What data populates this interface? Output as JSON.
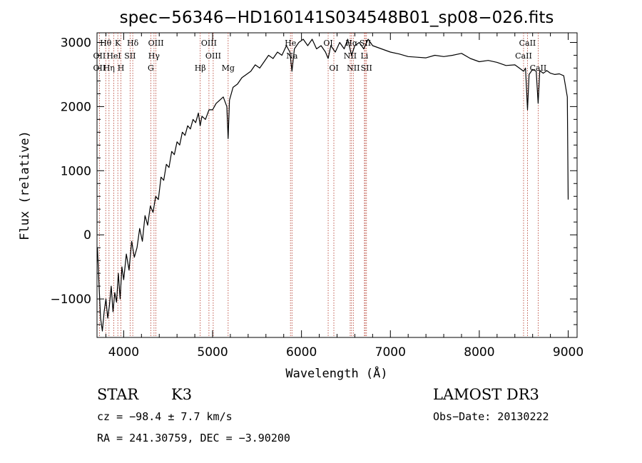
{
  "chart_data": {
    "type": "line",
    "title": "spec−56346−HD160141S034548B01_sp08−026.fits",
    "xlabel": "Wavelength (Å)",
    "ylabel": "Flux (relative)",
    "xlim": [
      3700,
      9100
    ],
    "ylim": [
      -1600,
      3150
    ],
    "x_ticks": [
      4000,
      5000,
      6000,
      7000,
      8000,
      9000
    ],
    "y_ticks": [
      -1000,
      0,
      1000,
      2000,
      3000
    ],
    "grid": false,
    "line_color": "#000000",
    "marker_color": "#b03020",
    "spectral_lines": [
      {
        "label": "Hθ",
        "x": 3798,
        "row": 0
      },
      {
        "label": "OII",
        "x": 3727,
        "row": 1
      },
      {
        "label": "OII",
        "x": 3727,
        "row": 2
      },
      {
        "label": "Hη",
        "x": 3835,
        "row": 2
      },
      {
        "label": "K",
        "x": 3934,
        "row": 0
      },
      {
        "label": "HeI",
        "x": 3889,
        "row": 1
      },
      {
        "label": "H",
        "x": 3969,
        "row": 2
      },
      {
        "label": "Hδ",
        "x": 4102,
        "row": 0
      },
      {
        "label": "SII",
        "x": 4072,
        "row": 1
      },
      {
        "label": "OIII",
        "x": 4363,
        "row": 0
      },
      {
        "label": "Hγ",
        "x": 4341,
        "row": 1
      },
      {
        "label": "G",
        "x": 4305,
        "row": 2
      },
      {
        "label": "Hβ",
        "x": 4861,
        "row": 2
      },
      {
        "label": "OIII",
        "x": 4959,
        "row": 0
      },
      {
        "label": "OIII",
        "x": 5007,
        "row": 1
      },
      {
        "label": "Mg",
        "x": 5175,
        "row": 2
      },
      {
        "label": "He",
        "x": 5876,
        "row": 0
      },
      {
        "label": "Na",
        "x": 5893,
        "row": 1
      },
      {
        "label": "OI",
        "x": 6300,
        "row": 0
      },
      {
        "label": "OI",
        "x": 6364,
        "row": 2
      },
      {
        "label": "NII",
        "x": 6548,
        "row": 1
      },
      {
        "label": "NII",
        "x": 6583,
        "row": 2
      },
      {
        "label": "Hα",
        "x": 6563,
        "row": 0
      },
      {
        "label": "SII",
        "x": 6717,
        "row": 0
      },
      {
        "label": "Li",
        "x": 6708,
        "row": 1
      },
      {
        "label": "SII",
        "x": 6731,
        "row": 2
      },
      {
        "label": "CaII",
        "x": 8542,
        "row": 0
      },
      {
        "label": "CaII",
        "x": 8498,
        "row": 1
      },
      {
        "label": "CaII",
        "x": 8662,
        "row": 2
      }
    ],
    "series": [
      {
        "x": [
          3705,
          3720,
          3740,
          3760,
          3780,
          3800,
          3820,
          3840,
          3860,
          3880,
          3900,
          3920,
          3940,
          3960,
          3980,
          4000,
          4030,
          4060,
          4090,
          4120,
          4150,
          4180,
          4210,
          4240,
          4270,
          4300,
          4330,
          4360,
          4390,
          4420,
          4450,
          4480,
          4510,
          4540,
          4570,
          4600,
          4630,
          4660,
          4690,
          4720,
          4750,
          4780,
          4810,
          4840,
          4860,
          4880,
          4920,
          4960,
          5000,
          5040,
          5080,
          5120,
          5160,
          5175,
          5190,
          5230,
          5280,
          5330,
          5380,
          5430,
          5480,
          5530,
          5580,
          5630,
          5680,
          5730,
          5780,
          5830,
          5870,
          5893,
          5920,
          5970,
          6020,
          6070,
          6120,
          6170,
          6220,
          6270,
          6300,
          6330,
          6380,
          6430,
          6480,
          6520,
          6563,
          6600,
          6650,
          6700,
          6750,
          6800,
          6900,
          7000,
          7100,
          7200,
          7300,
          7400,
          7500,
          7600,
          7700,
          7800,
          7900,
          8000,
          8100,
          8200,
          8300,
          8400,
          8450,
          8498,
          8520,
          8542,
          8560,
          8600,
          8640,
          8662,
          8680,
          8720,
          8760,
          8800,
          8850,
          8900,
          8950,
          8990,
          9000
        ],
        "y": [
          -200,
          -700,
          -1300,
          -1500,
          -1200,
          -1000,
          -1300,
          -1100,
          -800,
          -1200,
          -900,
          -1050,
          -600,
          -1000,
          -500,
          -700,
          -300,
          -550,
          -100,
          -350,
          -200,
          100,
          -100,
          300,
          150,
          450,
          350,
          600,
          550,
          900,
          850,
          1100,
          1050,
          1300,
          1250,
          1450,
          1400,
          1600,
          1550,
          1700,
          1650,
          1800,
          1750,
          1900,
          1700,
          1850,
          1800,
          1950,
          1950,
          2050,
          2100,
          2150,
          2000,
          1500,
          2100,
          2300,
          2350,
          2450,
          2500,
          2550,
          2650,
          2600,
          2700,
          2800,
          2750,
          2850,
          2800,
          2950,
          2850,
          2550,
          2900,
          3000,
          3050,
          2950,
          3050,
          2900,
          2950,
          2850,
          2750,
          2950,
          2850,
          3000,
          2900,
          3050,
          2800,
          2950,
          3000,
          2900,
          3050,
          2950,
          2900,
          2850,
          2820,
          2780,
          2770,
          2760,
          2800,
          2780,
          2800,
          2830,
          2750,
          2700,
          2720,
          2690,
          2640,
          2650,
          2600,
          2550,
          2600,
          1950,
          2500,
          2580,
          2550,
          2050,
          2560,
          2520,
          2560,
          2520,
          2500,
          2510,
          2480,
          2150,
          550
        ]
      }
    ]
  },
  "info": {
    "object_type": "STAR",
    "subclass": "K3",
    "survey": "LAMOST DR3",
    "cz": "cz = −98.4 ± 7.7 km/s",
    "obs_date": "Obs−Date: 20130222",
    "coords": "RA = 241.30759, DEC =  −3.90200"
  }
}
